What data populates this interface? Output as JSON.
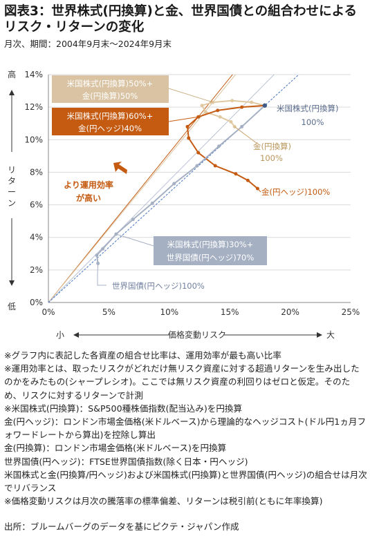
{
  "header": {
    "title": "図表3：世界株式(円換算)と金、世界国債との組合わせによるリスク・リターンの変化",
    "subtitle": "月次、期間：2004年9月末～2024年9月末"
  },
  "chart_data": {
    "type": "scatter",
    "xlim": [
      0,
      25
    ],
    "ylim": [
      0,
      14
    ],
    "x_ticks": [
      "0%",
      "5%",
      "10%",
      "15%",
      "20%",
      "25%"
    ],
    "y_ticks": [
      "0%",
      "2%",
      "4%",
      "6%",
      "8%",
      "10%",
      "12%",
      "14%"
    ],
    "xlabel": "価格変動リスク",
    "xlabel_left": "小",
    "xlabel_right": "大",
    "ylabel": "リターン",
    "ylabel_top": "高",
    "ylabel_bottom": "低",
    "grid": "horizontal",
    "series": [
      {
        "color": "#e0c8a0",
        "points": [
          [
            17.9,
            12.1
          ],
          [
            16.8,
            12.3
          ],
          [
            15.2,
            12.4
          ],
          [
            13.6,
            12.3
          ],
          [
            12.7,
            12.1
          ],
          [
            13.0,
            11.7
          ],
          [
            14.2,
            11.4
          ],
          [
            15.1,
            11.1
          ],
          [
            15.4,
            10.8
          ]
        ]
      },
      {
        "color": "#c55a11",
        "points": [
          [
            17.9,
            12.1
          ],
          [
            16.0,
            12.0
          ],
          [
            14.0,
            11.8
          ],
          [
            12.4,
            11.4
          ],
          [
            11.5,
            10.8
          ],
          [
            11.6,
            10.1
          ],
          [
            12.4,
            9.2
          ],
          [
            13.8,
            8.4
          ],
          [
            15.5,
            7.9
          ],
          [
            16.5,
            7.5
          ],
          [
            17.3,
            7.0
          ]
        ]
      },
      {
        "color": "#a6b0c3",
        "points": [
          [
            17.9,
            12.1
          ],
          [
            16.0,
            10.8
          ],
          [
            14.1,
            9.6
          ],
          [
            12.3,
            8.4
          ],
          [
            10.4,
            7.3
          ],
          [
            8.6,
            6.1
          ],
          [
            7.0,
            5.1
          ],
          [
            5.6,
            4.2
          ],
          [
            4.5,
            3.3
          ],
          [
            4.0,
            2.9
          ],
          [
            4.1,
            2.4
          ]
        ]
      }
    ],
    "frontier_lines": [
      {
        "color": "#c55a11",
        "through": [
          12.4,
          11.4
        ]
      },
      {
        "color": "#dcc3a0",
        "through": [
          13.6,
          12.3
        ]
      },
      {
        "color": "#b8c2d4",
        "through": [
          5.6,
          4.2
        ]
      },
      {
        "color": "#4472c4",
        "dashed": true,
        "through": [
          17.9,
          12.1
        ]
      }
    ],
    "labels": {
      "us_stock": [
        "米国株式(円換算)",
        "100%"
      ],
      "gold_yen": [
        "金(円換算)",
        "100%"
      ],
      "gold_hedge": "金(円ヘッジ)100%",
      "bond": "世界国債(円ヘッジ)100%",
      "efficiency": [
        "より運用効率",
        "が高い"
      ]
    },
    "boxes": {
      "mix_gold_yen": [
        "米国株式(円換算)50%+",
        "金(円換算)50%"
      ],
      "mix_gold_hedge": [
        "米国株式(円換算)60%+",
        "金(円ヘッジ)40%"
      ],
      "mix_bond": [
        "米国株式(円換算)30%+",
        "世界国債(円ヘッジ)70%"
      ]
    }
  },
  "notes": [
    "※グラフ内に表記した各資産の組合せ比率は、運用効率が最も高い比率",
    "※運用効率とは、取ったリスクがどれだけ無リスク資産に対する超過リターンを生み出したのかをみたもの(シャープレシオ)。ここでは無リスク資産の利回りはゼロと仮定。そのため、リスクに対するリターンで計測",
    "※米国株式(円換算)：S&P500種株価指数(配当込み)を円換算",
    "金(円ヘッジ)：ロンドン市場金価格(米ドルベース)から理論的なヘッジコスト(ドル円1ヵ月フォワードレートから算出)を控除し算出",
    "金(円換算)：ロンドン市場金価格(米ドルベース)を円換算",
    "世界国債(円ヘッジ)：FTSE世界国債指数(除く日本・円ヘッジ)",
    "米国株式と金(円換算/円ヘッジ)および米国株式(円換算)と世界国債(円ヘッジ)の組合せは月次でリバランス",
    "※価格変動リスクは月次の騰落率の標準偏差、リターンは税引前(ともに年率換算)"
  ],
  "source": "出所：ブルームバーグのデータを基にピクテ・ジャパン作成"
}
